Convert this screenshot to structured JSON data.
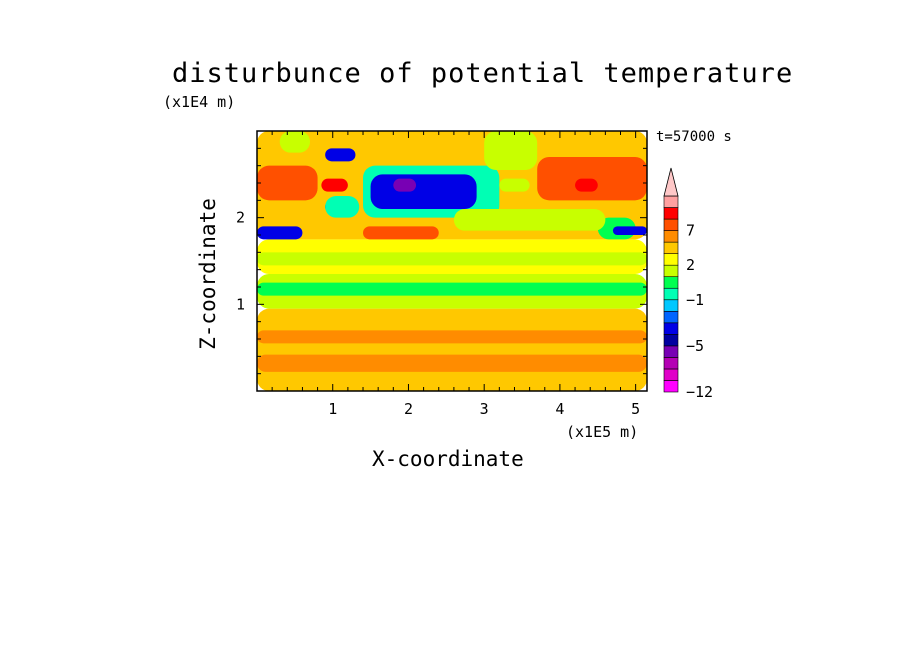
{
  "chart_data": {
    "type": "heatmap",
    "title": "disturbunce of potential temperature",
    "xlabel": "X-coordinate",
    "ylabel": "Z-coordinate",
    "x_unit": "(x1E5 m)",
    "y_unit": "(x1E4 m)",
    "annotation": "t=57000 s",
    "x_ticks": [
      "1",
      "2",
      "3",
      "4",
      "5"
    ],
    "y_ticks": [
      "1",
      "2"
    ],
    "xlim": [
      0,
      5.15
    ],
    "ylim": [
      0,
      3.0
    ],
    "colorbar": {
      "tick_labels": [
        "7",
        "2",
        "−1",
        "−5",
        "−12"
      ],
      "levels": [
        -12,
        -11,
        -9,
        -7,
        -5,
        -4,
        -3,
        -2,
        -1,
        0,
        1,
        2,
        3,
        5,
        7,
        9,
        11
      ],
      "colors": [
        "#ff00ff",
        "#e000c8",
        "#b400b4",
        "#7800b4",
        "#0000a0",
        "#0000e6",
        "#0064ff",
        "#00c8ff",
        "#00ffb4",
        "#00ff50",
        "#c8ff00",
        "#ffff00",
        "#ffc800",
        "#ff8c00",
        "#ff5000",
        "#ff0000",
        "#ffa0a0",
        "#ffc8c8"
      ],
      "extend": "max"
    },
    "regions": [
      {
        "x0": 0.0,
        "x1": 5.15,
        "z0": 0.0,
        "z1": 0.95,
        "level": 2
      },
      {
        "x0": 0.0,
        "x1": 5.15,
        "z0": 0.95,
        "z1": 1.35,
        "level": 0
      },
      {
        "x0": 0.0,
        "x1": 5.15,
        "z0": 1.35,
        "z1": 1.75,
        "level": 1
      },
      {
        "x0": 0.0,
        "x1": 5.15,
        "z0": 1.75,
        "z1": 3.0,
        "level": 2
      },
      {
        "x0": 0.0,
        "x1": 5.15,
        "z0": 0.22,
        "z1": 0.42,
        "level": 3
      },
      {
        "x0": 0.0,
        "x1": 5.15,
        "z0": 0.55,
        "z1": 0.7,
        "level": 3
      },
      {
        "x0": 0.0,
        "x1": 5.15,
        "z0": 1.1,
        "z1": 1.25,
        "level": -1
      },
      {
        "x0": 0.0,
        "x1": 5.15,
        "z0": 1.45,
        "z1": 1.6,
        "level": 0
      },
      {
        "x0": 0.0,
        "x1": 0.6,
        "z0": 1.75,
        "z1": 1.9,
        "level": -5
      },
      {
        "x0": 0.9,
        "x1": 1.3,
        "z0": 2.05,
        "z1": 2.2,
        "level": -5
      },
      {
        "x0": 0.9,
        "x1": 1.35,
        "z0": 2.0,
        "z1": 2.25,
        "level": -2
      },
      {
        "x0": 1.4,
        "x1": 2.4,
        "z0": 1.75,
        "z1": 1.9,
        "level": 5
      },
      {
        "x0": 1.4,
        "x1": 3.2,
        "z0": 2.0,
        "z1": 2.6,
        "level": -2
      },
      {
        "x0": 1.5,
        "x1": 2.9,
        "z0": 2.1,
        "z1": 2.5,
        "level": -5
      },
      {
        "x0": 1.8,
        "x1": 2.1,
        "z0": 2.3,
        "z1": 2.45,
        "level": -9
      },
      {
        "x0": 0.9,
        "x1": 1.3,
        "z0": 2.65,
        "z1": 2.8,
        "level": -5
      },
      {
        "x0": 0.0,
        "x1": 0.8,
        "z0": 2.2,
        "z1": 2.6,
        "level": 5
      },
      {
        "x0": 0.85,
        "x1": 1.2,
        "z0": 2.3,
        "z1": 2.45,
        "level": 7
      },
      {
        "x0": 3.2,
        "x1": 3.6,
        "z0": 2.3,
        "z1": 2.45,
        "level": 0
      },
      {
        "x0": 3.7,
        "x1": 5.15,
        "z0": 2.2,
        "z1": 2.7,
        "level": 5
      },
      {
        "x0": 4.2,
        "x1": 4.5,
        "z0": 2.3,
        "z1": 2.45,
        "level": 7
      },
      {
        "x0": 4.5,
        "x1": 5.0,
        "z0": 1.75,
        "z1": 2.0,
        "level": -1
      },
      {
        "x0": 4.7,
        "x1": 5.15,
        "z0": 1.8,
        "z1": 1.9,
        "level": -5
      },
      {
        "x0": 2.6,
        "x1": 4.6,
        "z0": 1.85,
        "z1": 2.1,
        "level": 0
      },
      {
        "x0": 3.0,
        "x1": 3.7,
        "z0": 2.55,
        "z1": 3.0,
        "level": 0
      },
      {
        "x0": 0.3,
        "x1": 0.7,
        "z0": 2.75,
        "z1": 3.0,
        "level": 0
      }
    ]
  }
}
